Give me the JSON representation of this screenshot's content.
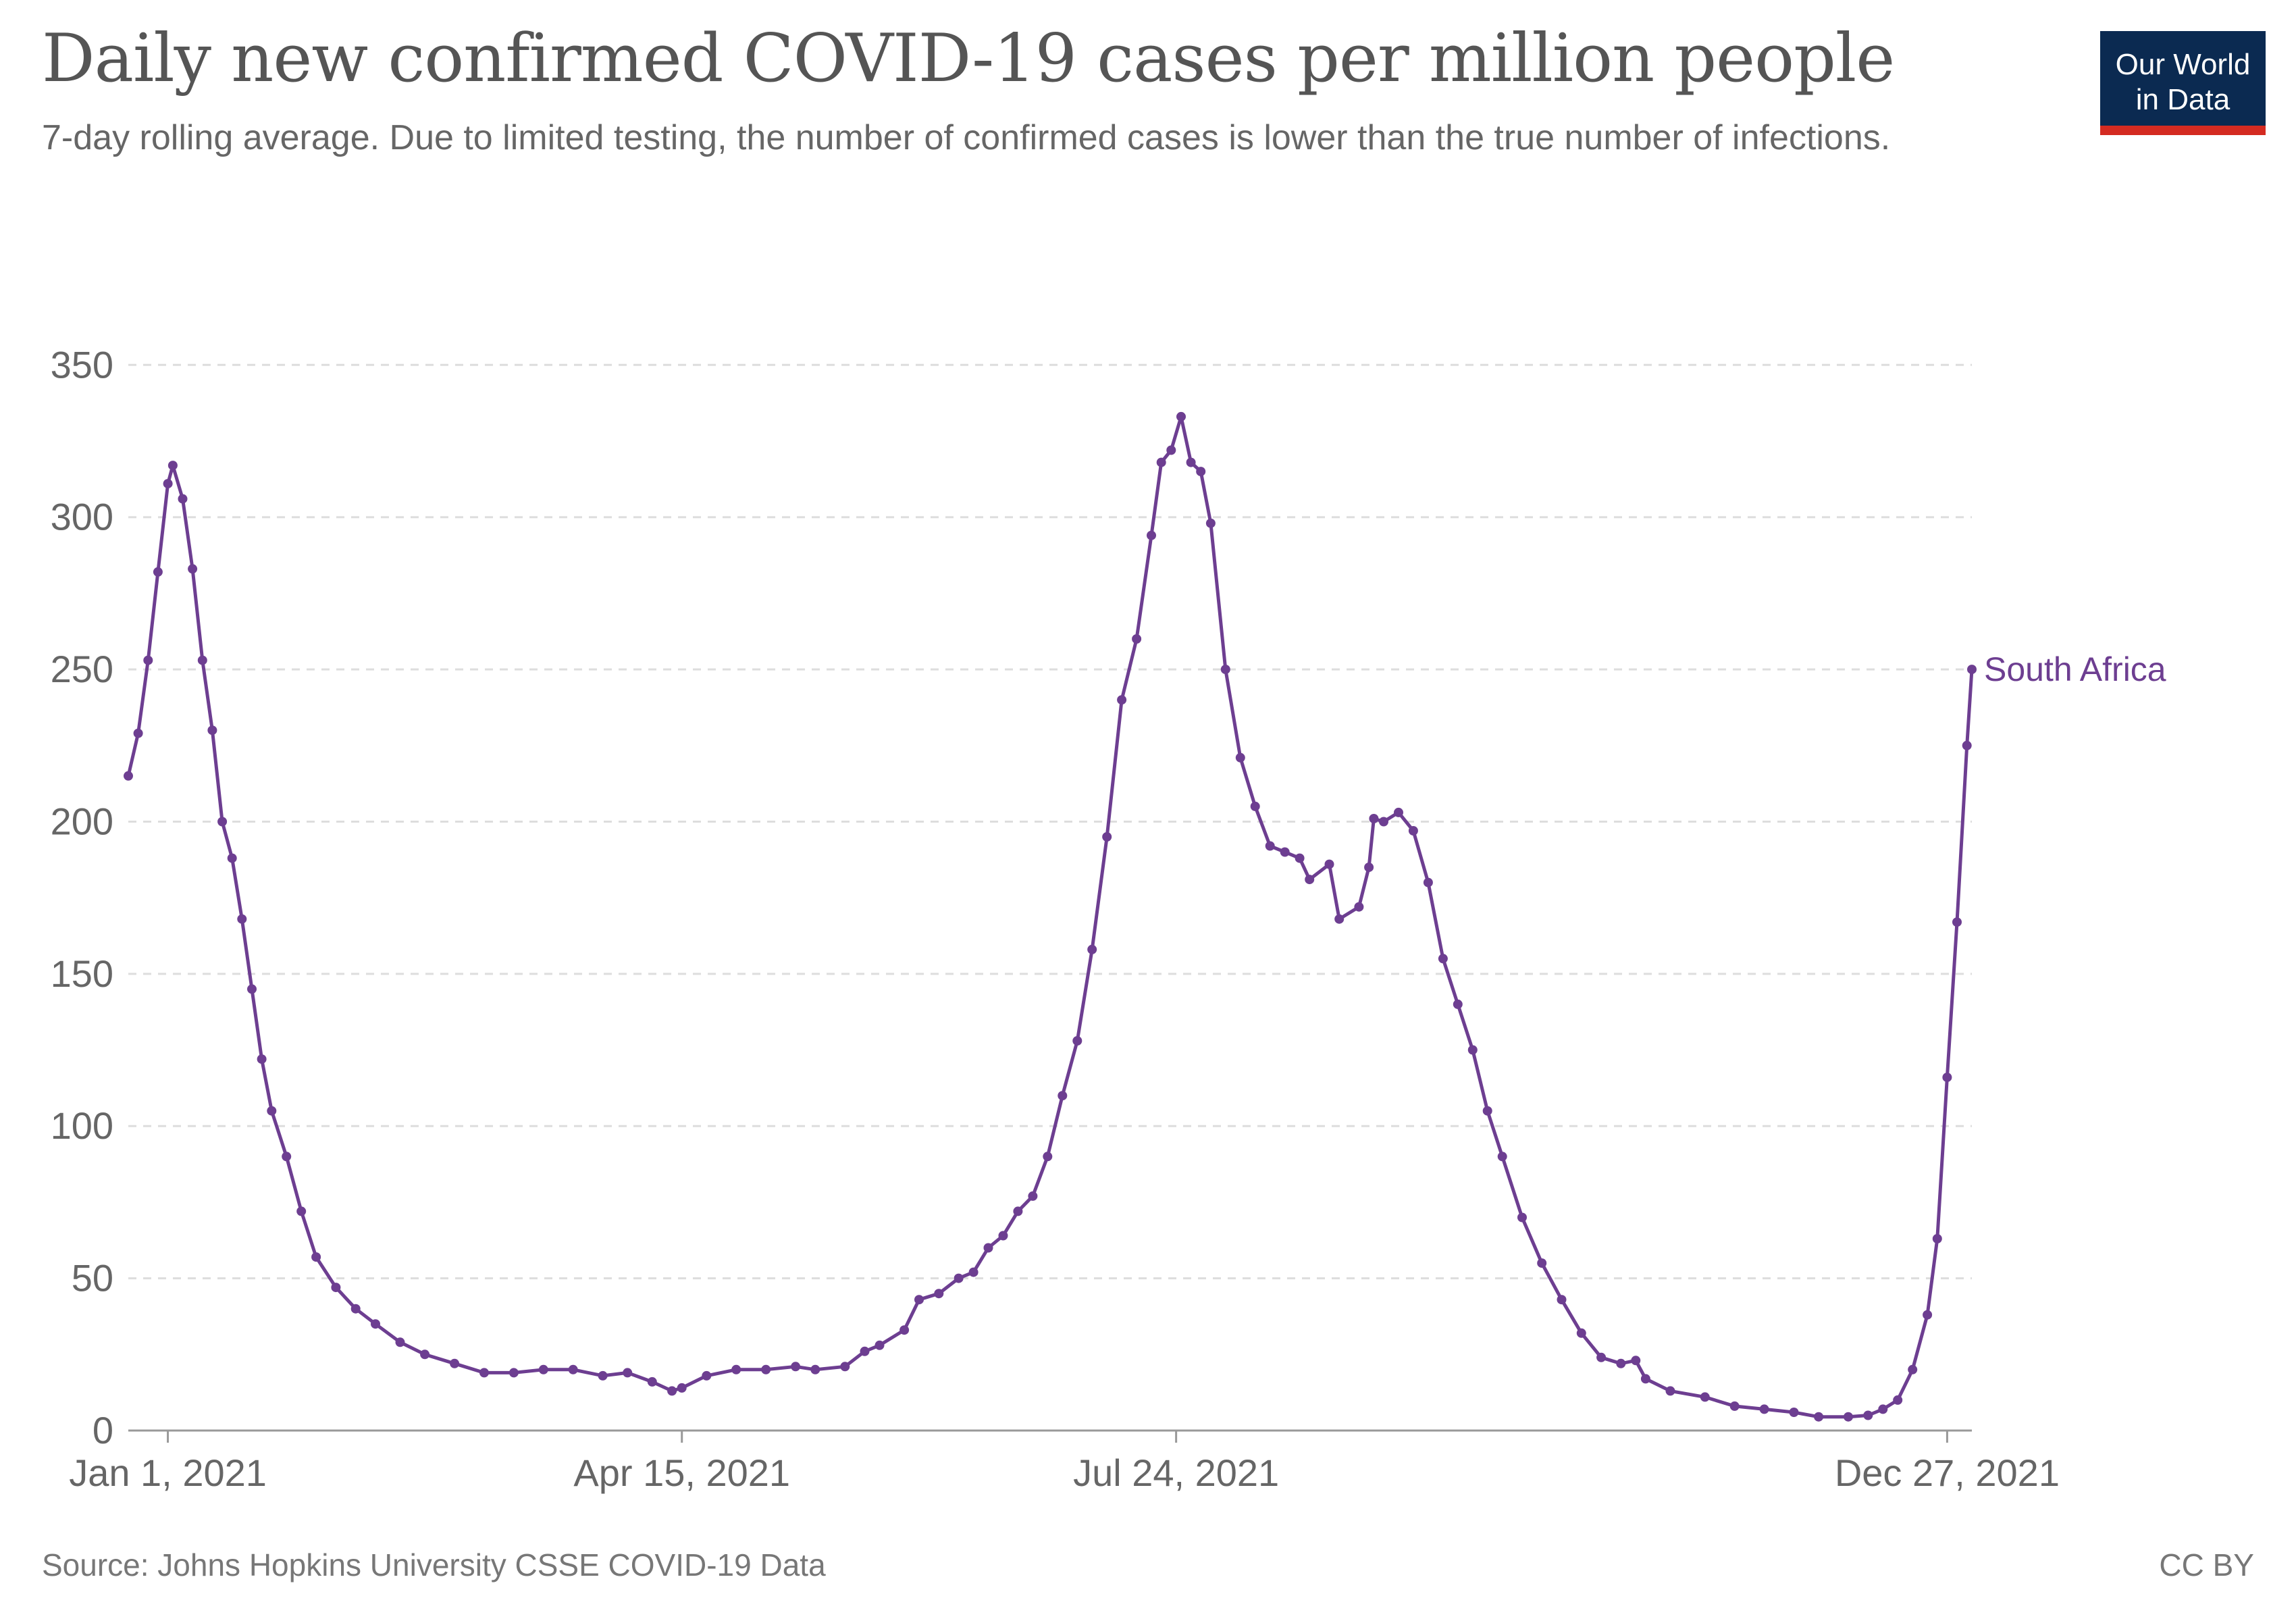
{
  "header": {
    "title": "Daily new confirmed COVID-19 cases per million people",
    "subtitle": "7-day rolling average. Due to limited testing, the number of confirmed cases is lower than the true number of infections."
  },
  "logo": {
    "line1": "Our World",
    "line2": "in Data"
  },
  "footer": {
    "source": "Source: Johns Hopkins University CSSE COVID-19 Data",
    "license": "CC BY"
  },
  "colors": {
    "series": "#6d3e91",
    "grid": "#dddddd",
    "axis": "#999999",
    "text": "#666666"
  },
  "chart_data": {
    "type": "line",
    "title": "Daily new confirmed COVID-19 cases per million people",
    "xlabel": "",
    "ylabel": "",
    "x_start": "2020-12-24",
    "x_end": "2022-01-01",
    "ylim": [
      0,
      390
    ],
    "y_ticks": [
      0,
      50,
      100,
      150,
      200,
      250,
      300,
      350
    ],
    "x_ticks": [
      {
        "date": "2021-01-01",
        "label": "Jan 1, 2021"
      },
      {
        "date": "2021-04-15",
        "label": "Apr 15, 2021"
      },
      {
        "date": "2021-07-24",
        "label": "Jul 24, 2021"
      },
      {
        "date": "2021-12-27",
        "label": "Dec 27, 2021"
      }
    ],
    "grid": true,
    "series": [
      {
        "name": "South Africa",
        "points": [
          [
            "2020-12-24",
            215
          ],
          [
            "2020-12-26",
            229
          ],
          [
            "2020-12-28",
            253
          ],
          [
            "2020-12-30",
            282
          ],
          [
            "2021-01-01",
            311
          ],
          [
            "2021-01-02",
            317
          ],
          [
            "2021-01-04",
            306
          ],
          [
            "2021-01-06",
            283
          ],
          [
            "2021-01-08",
            253
          ],
          [
            "2021-01-10",
            230
          ],
          [
            "2021-01-12",
            200
          ],
          [
            "2021-01-14",
            188
          ],
          [
            "2021-01-16",
            168
          ],
          [
            "2021-01-18",
            145
          ],
          [
            "2021-01-20",
            122
          ],
          [
            "2021-01-22",
            105
          ],
          [
            "2021-01-25",
            90
          ],
          [
            "2021-01-28",
            72
          ],
          [
            "2021-01-31",
            57
          ],
          [
            "2021-02-04",
            47
          ],
          [
            "2021-02-08",
            40
          ],
          [
            "2021-02-12",
            35
          ],
          [
            "2021-02-17",
            29
          ],
          [
            "2021-02-22",
            25
          ],
          [
            "2021-02-28",
            22
          ],
          [
            "2021-03-06",
            19
          ],
          [
            "2021-03-12",
            19
          ],
          [
            "2021-03-18",
            20
          ],
          [
            "2021-03-24",
            20
          ],
          [
            "2021-03-30",
            18
          ],
          [
            "2021-04-04",
            19
          ],
          [
            "2021-04-09",
            16
          ],
          [
            "2021-04-13",
            13
          ],
          [
            "2021-04-15",
            14
          ],
          [
            "2021-04-20",
            18
          ],
          [
            "2021-04-26",
            20
          ],
          [
            "2021-05-02",
            20
          ],
          [
            "2021-05-08",
            21
          ],
          [
            "2021-05-12",
            20
          ],
          [
            "2021-05-18",
            21
          ],
          [
            "2021-05-22",
            26
          ],
          [
            "2021-05-25",
            28
          ],
          [
            "2021-05-30",
            33
          ],
          [
            "2021-06-02",
            43
          ],
          [
            "2021-06-06",
            45
          ],
          [
            "2021-06-10",
            50
          ],
          [
            "2021-06-13",
            52
          ],
          [
            "2021-06-16",
            60
          ],
          [
            "2021-06-19",
            64
          ],
          [
            "2021-06-22",
            72
          ],
          [
            "2021-06-25",
            77
          ],
          [
            "2021-06-28",
            90
          ],
          [
            "2021-07-01",
            110
          ],
          [
            "2021-07-04",
            128
          ],
          [
            "2021-07-07",
            158
          ],
          [
            "2021-07-10",
            195
          ],
          [
            "2021-07-13",
            240
          ],
          [
            "2021-07-16",
            260
          ],
          [
            "2021-07-19",
            294
          ],
          [
            "2021-07-21",
            318
          ],
          [
            "2021-07-23",
            322
          ],
          [
            "2021-07-25",
            333
          ],
          [
            "2021-07-27",
            318
          ],
          [
            "2021-07-29",
            315
          ],
          [
            "2021-07-31",
            298
          ],
          [
            "2021-08-03",
            250
          ],
          [
            "2021-08-06",
            221
          ],
          [
            "2021-08-09",
            205
          ],
          [
            "2021-08-12",
            192
          ],
          [
            "2021-08-15",
            190
          ],
          [
            "2021-08-18",
            188
          ],
          [
            "2021-08-20",
            181
          ],
          [
            "2021-08-24",
            186
          ],
          [
            "2021-08-26",
            168
          ],
          [
            "2021-08-30",
            172
          ],
          [
            "2021-09-01",
            185
          ],
          [
            "2021-09-02",
            201
          ],
          [
            "2021-09-04",
            200
          ],
          [
            "2021-09-07",
            203
          ],
          [
            "2021-09-10",
            197
          ],
          [
            "2021-09-13",
            180
          ],
          [
            "2021-09-16",
            155
          ],
          [
            "2021-09-19",
            140
          ],
          [
            "2021-09-22",
            125
          ],
          [
            "2021-09-25",
            105
          ],
          [
            "2021-09-28",
            90
          ],
          [
            "2021-10-02",
            70
          ],
          [
            "2021-10-06",
            55
          ],
          [
            "2021-10-10",
            43
          ],
          [
            "2021-10-14",
            32
          ],
          [
            "2021-10-18",
            24
          ],
          [
            "2021-10-22",
            22
          ],
          [
            "2021-10-25",
            23
          ],
          [
            "2021-10-27",
            17
          ],
          [
            "2021-11-01",
            13
          ],
          [
            "2021-11-08",
            11
          ],
          [
            "2021-11-14",
            8
          ],
          [
            "2021-11-20",
            7
          ],
          [
            "2021-11-26",
            6
          ],
          [
            "2021-12-01",
            4.5
          ],
          [
            "2021-12-07",
            4.5
          ],
          [
            "2021-12-11",
            5
          ],
          [
            "2021-12-14",
            7
          ],
          [
            "2021-12-17",
            10
          ],
          [
            "2021-12-20",
            20
          ],
          [
            "2021-12-23",
            38
          ],
          [
            "2021-12-25",
            63
          ],
          [
            "2021-12-27",
            116
          ],
          [
            "2021-12-29",
            167
          ],
          [
            "2021-12-31",
            225
          ],
          [
            "2022-01-01",
            250
          ]
        ]
      }
    ]
  }
}
